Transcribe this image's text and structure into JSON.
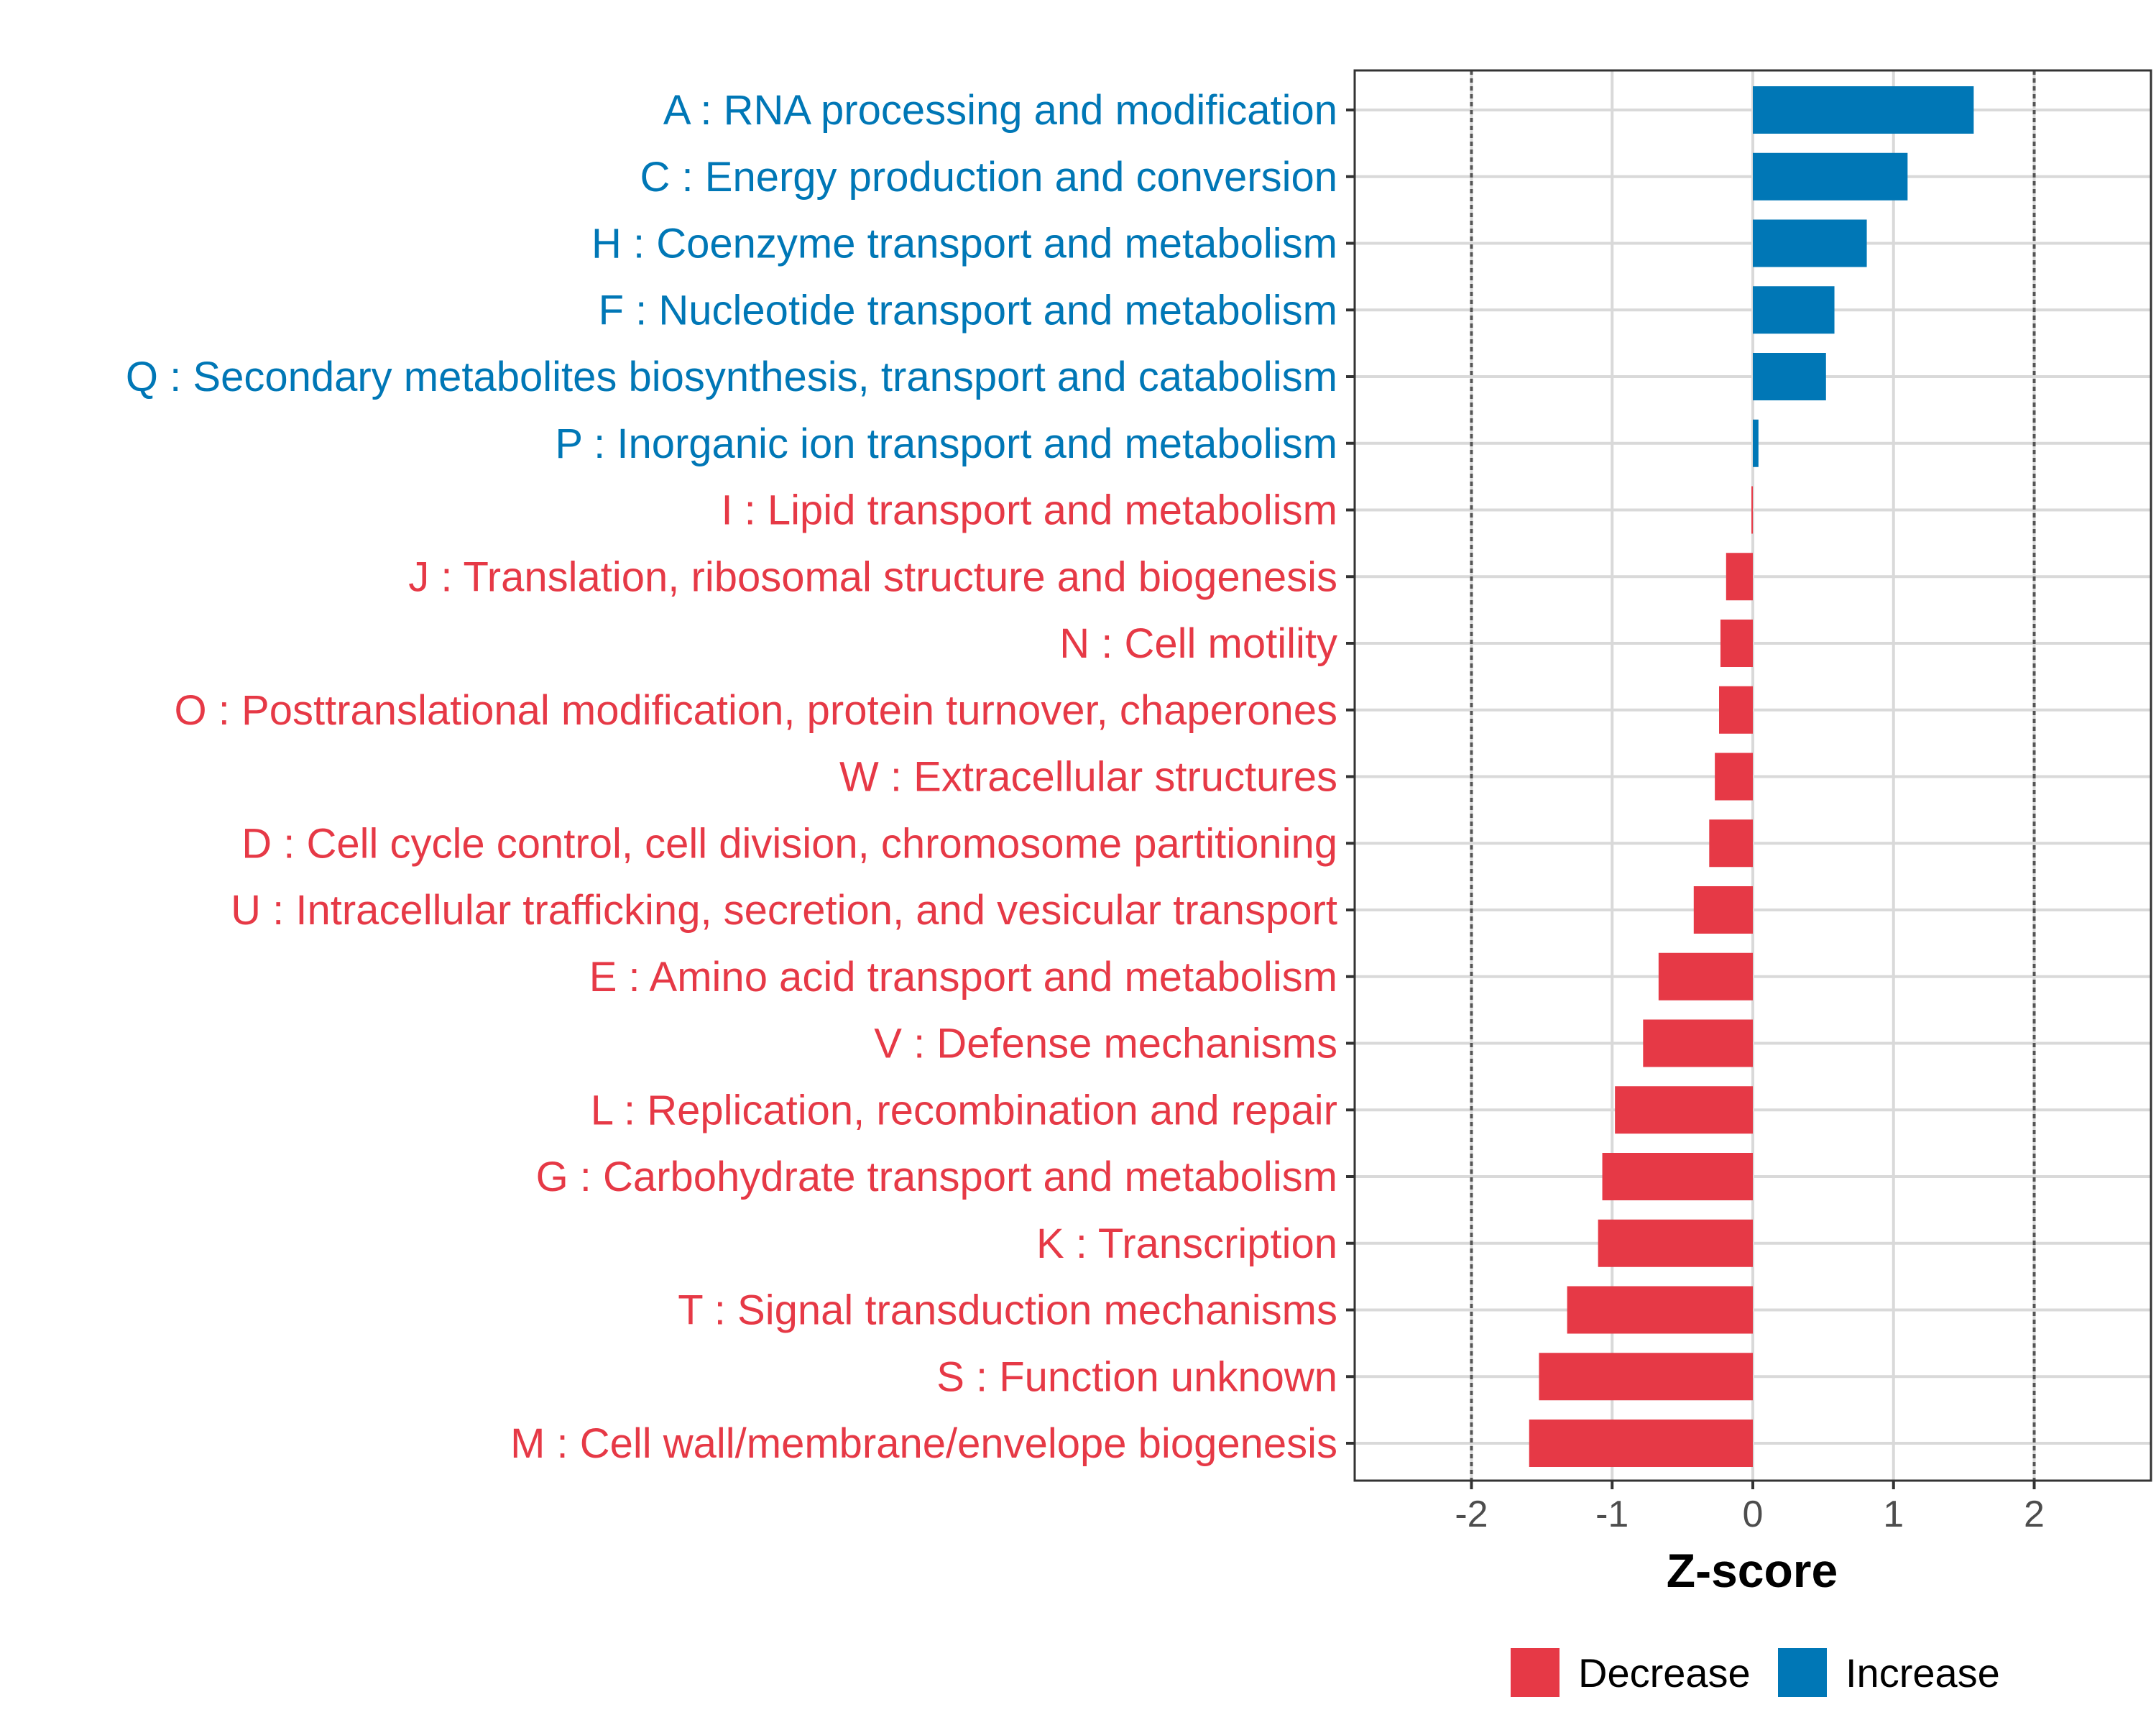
{
  "chart_data": {
    "type": "bar",
    "orientation": "horizontal",
    "xlabel": "Z-score",
    "ylabel": "",
    "xlim": [
      -2.83,
      2.83
    ],
    "x_ticks": [
      -2,
      -1,
      0,
      1,
      2
    ],
    "x_tick_labels": [
      "-2",
      "-1",
      "0",
      "1",
      "2"
    ],
    "reference_lines": [
      -2,
      2
    ],
    "grid": true,
    "categories": [
      "A : RNA processing and modification",
      "C : Energy production and conversion",
      "H : Coenzyme transport and metabolism",
      "F : Nucleotide transport and metabolism",
      "Q : Secondary metabolites biosynthesis, transport and catabolism",
      "P : Inorganic ion transport and metabolism",
      "I : Lipid transport and metabolism",
      "J : Translation, ribosomal structure and biogenesis",
      "N : Cell motility",
      "O : Posttranslational modification, protein turnover, chaperones",
      "W : Extracellular structures",
      "D : Cell cycle control, cell division, chromosome partitioning",
      "U : Intracellular trafficking, secretion, and vesicular transport",
      "E : Amino acid transport and metabolism",
      "V : Defense mechanisms",
      "L : Replication, recombination and repair",
      "G : Carbohydrate transport and metabolism",
      "K : Transcription",
      "T : Signal transduction mechanisms",
      "S : Function unknown",
      "M : Cell wall/membrane/envelope biogenesis"
    ],
    "values": [
      1.57,
      1.1,
      0.81,
      0.58,
      0.52,
      0.04,
      -0.01,
      -0.19,
      -0.23,
      -0.24,
      -0.27,
      -0.31,
      -0.42,
      -0.67,
      -0.78,
      -0.98,
      -1.07,
      -1.1,
      -1.32,
      -1.52,
      -1.59
    ],
    "groups": [
      "Increase",
      "Increase",
      "Increase",
      "Increase",
      "Increase",
      "Increase",
      "Decrease",
      "Decrease",
      "Decrease",
      "Decrease",
      "Decrease",
      "Decrease",
      "Decrease",
      "Decrease",
      "Decrease",
      "Decrease",
      "Decrease",
      "Decrease",
      "Decrease",
      "Decrease",
      "Decrease"
    ],
    "legend": {
      "position": "bottom",
      "entries": [
        {
          "name": "Decrease",
          "color": "#E63946"
        },
        {
          "name": "Increase",
          "color": "#0077B6"
        }
      ]
    }
  },
  "colors": {
    "decrease": "#E63946",
    "increase": "#0077B6",
    "grid": "#D9D9D9",
    "panel_border": "#333333",
    "reference_line": "#555555"
  }
}
